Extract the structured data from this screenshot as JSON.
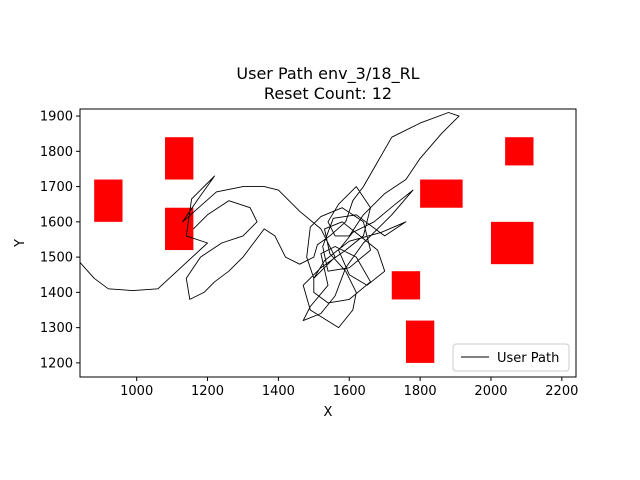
{
  "chart_data": {
    "type": "line",
    "title": "User Path env_3/18_RL",
    "subtitle": "Reset Count: 12",
    "xlabel": "X",
    "ylabel": "Y",
    "xlim": [
      840,
      2240
    ],
    "ylim": [
      1160,
      1920
    ],
    "xticks": [
      1000,
      1200,
      1400,
      1600,
      1800,
      2000,
      2200
    ],
    "yticks": [
      1200,
      1300,
      1400,
      1500,
      1600,
      1700,
      1800,
      1900
    ],
    "grid": false,
    "legend_position": "lower-right",
    "series": [
      {
        "name": "User Path",
        "color": "#000000",
        "points": [
          [
            840,
            1485
          ],
          [
            880,
            1440
          ],
          [
            920,
            1410
          ],
          [
            990,
            1405
          ],
          [
            1060,
            1410
          ],
          [
            1200,
            1540
          ],
          [
            1140,
            1560
          ],
          [
            1155,
            1665
          ],
          [
            1220,
            1730
          ],
          [
            1170,
            1660
          ],
          [
            1130,
            1600
          ],
          [
            1225,
            1685
          ],
          [
            1300,
            1700
          ],
          [
            1360,
            1700
          ],
          [
            1400,
            1690
          ],
          [
            1460,
            1630
          ],
          [
            1520,
            1580
          ],
          [
            1560,
            1500
          ],
          [
            1500,
            1440
          ],
          [
            1480,
            1500
          ],
          [
            1490,
            1585
          ],
          [
            1520,
            1615
          ],
          [
            1580,
            1640
          ],
          [
            1640,
            1600
          ],
          [
            1660,
            1520
          ],
          [
            1600,
            1470
          ],
          [
            1540,
            1460
          ],
          [
            1525,
            1530
          ],
          [
            1555,
            1610
          ],
          [
            1620,
            1620
          ],
          [
            1700,
            1560
          ],
          [
            1760,
            1600
          ],
          [
            1690,
            1570
          ],
          [
            1600,
            1545
          ],
          [
            1530,
            1490
          ],
          [
            1500,
            1440
          ],
          [
            1500,
            1400
          ],
          [
            1540,
            1370
          ],
          [
            1600,
            1380
          ],
          [
            1660,
            1430
          ],
          [
            1620,
            1500
          ],
          [
            1560,
            1530
          ],
          [
            1520,
            1510
          ],
          [
            1540,
            1420
          ],
          [
            1490,
            1360
          ],
          [
            1470,
            1320
          ],
          [
            1520,
            1340
          ],
          [
            1560,
            1390
          ],
          [
            1590,
            1470
          ],
          [
            1640,
            1540
          ],
          [
            1720,
            1620
          ],
          [
            1780,
            1690
          ],
          [
            1730,
            1650
          ],
          [
            1670,
            1600
          ],
          [
            1610,
            1570
          ],
          [
            1570,
            1520
          ],
          [
            1600,
            1450
          ],
          [
            1650,
            1420
          ],
          [
            1700,
            1460
          ],
          [
            1680,
            1520
          ],
          [
            1630,
            1560
          ],
          [
            1580,
            1600
          ],
          [
            1530,
            1580
          ],
          [
            1545,
            1510
          ],
          [
            1590,
            1460
          ],
          [
            1620,
            1400
          ],
          [
            1610,
            1350
          ],
          [
            1570,
            1300
          ],
          [
            1490,
            1350
          ],
          [
            1470,
            1420
          ],
          [
            1520,
            1470
          ],
          [
            1590,
            1520
          ],
          [
            1640,
            1560
          ],
          [
            1660,
            1640
          ],
          [
            1620,
            1700
          ],
          [
            1570,
            1650
          ],
          [
            1540,
            1600
          ],
          [
            1560,
            1560
          ],
          [
            1600,
            1560
          ],
          [
            1640,
            1620
          ],
          [
            1700,
            1680
          ],
          [
            1760,
            1720
          ],
          [
            1800,
            1780
          ],
          [
            1860,
            1850
          ],
          [
            1890,
            1880
          ],
          [
            1910,
            1900
          ],
          [
            1880,
            1910
          ],
          [
            1800,
            1880
          ],
          [
            1720,
            1840
          ],
          [
            1680,
            1770
          ],
          [
            1640,
            1700
          ],
          [
            1610,
            1660
          ],
          [
            1590,
            1600
          ],
          [
            1545,
            1560
          ],
          [
            1510,
            1535
          ],
          [
            1500,
            1500
          ],
          [
            1460,
            1480
          ],
          [
            1420,
            1500
          ],
          [
            1390,
            1560
          ],
          [
            1360,
            1580
          ],
          [
            1330,
            1540
          ],
          [
            1300,
            1500
          ],
          [
            1260,
            1460
          ],
          [
            1220,
            1430
          ],
          [
            1190,
            1400
          ],
          [
            1150,
            1380
          ],
          [
            1140,
            1440
          ],
          [
            1180,
            1500
          ],
          [
            1240,
            1540
          ],
          [
            1300,
            1560
          ],
          [
            1340,
            1600
          ],
          [
            1320,
            1640
          ],
          [
            1260,
            1660
          ],
          [
            1200,
            1620
          ],
          [
            1160,
            1580
          ]
        ]
      }
    ],
    "obstacles": [
      {
        "x": [
          880,
          960
        ],
        "y": [
          1600,
          1720
        ],
        "color": "#ff0000"
      },
      {
        "x": [
          1080,
          1160
        ],
        "y": [
          1720,
          1840
        ],
        "color": "#ff0000"
      },
      {
        "x": [
          1080,
          1160
        ],
        "y": [
          1520,
          1640
        ],
        "color": "#ff0000"
      },
      {
        "x": [
          1800,
          1920
        ],
        "y": [
          1640,
          1720
        ],
        "color": "#ff0000"
      },
      {
        "x": [
          2040,
          2120
        ],
        "y": [
          1760,
          1840
        ],
        "color": "#ff0000"
      },
      {
        "x": [
          2000,
          2120
        ],
        "y": [
          1480,
          1600
        ],
        "color": "#ff0000"
      },
      {
        "x": [
          1720,
          1800
        ],
        "y": [
          1380,
          1460
        ],
        "color": "#ff0000"
      },
      {
        "x": [
          1760,
          1840
        ],
        "y": [
          1200,
          1320
        ],
        "color": "#ff0000"
      }
    ]
  }
}
